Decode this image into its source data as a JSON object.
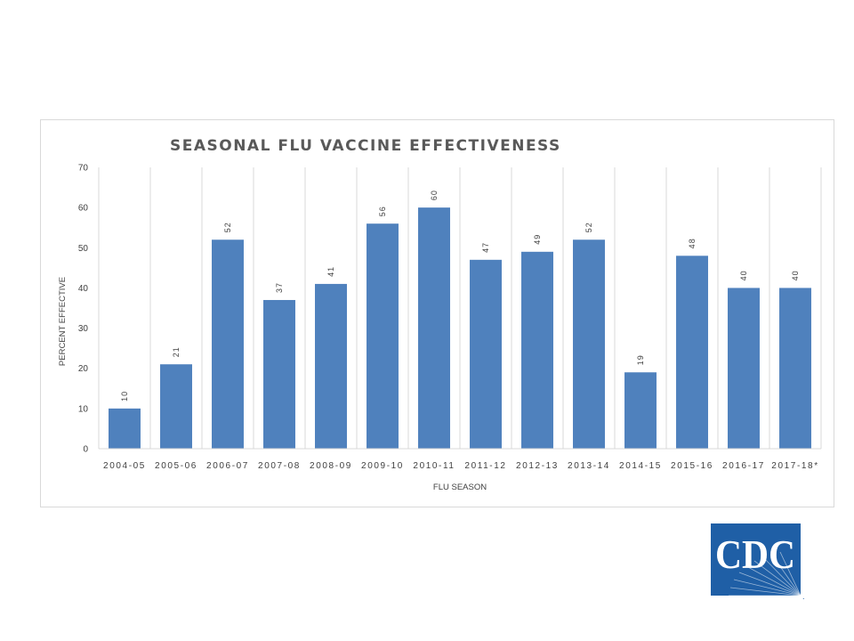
{
  "chart_data": {
    "type": "bar",
    "title": "SEASONAL FLU VACCINE EFFECTIVENESS",
    "xlabel": "FLU SEASON",
    "ylabel": "PERCENT EFFECTIVE",
    "categories": [
      "2004-05",
      "2005-06",
      "2006-07",
      "2007-08",
      "2008-09",
      "2009-10",
      "2010-11",
      "2011-12",
      "2012-13",
      "2013-14",
      "2014-15",
      "2015-16",
      "2016-17",
      "2017-18*"
    ],
    "values": [
      10,
      21,
      52,
      37,
      41,
      56,
      60,
      47,
      49,
      52,
      19,
      48,
      40,
      40
    ],
    "ylim": [
      0,
      70
    ],
    "yticks": [
      0,
      10,
      20,
      30,
      40,
      50,
      60,
      70
    ],
    "grid": "vertical category separators",
    "legend": "none",
    "data_labels": "rotated, above bars",
    "bar_color": "#4f81bd"
  },
  "logo": {
    "text": "CDC",
    "mark": ".",
    "color": "#1f5fa6"
  }
}
